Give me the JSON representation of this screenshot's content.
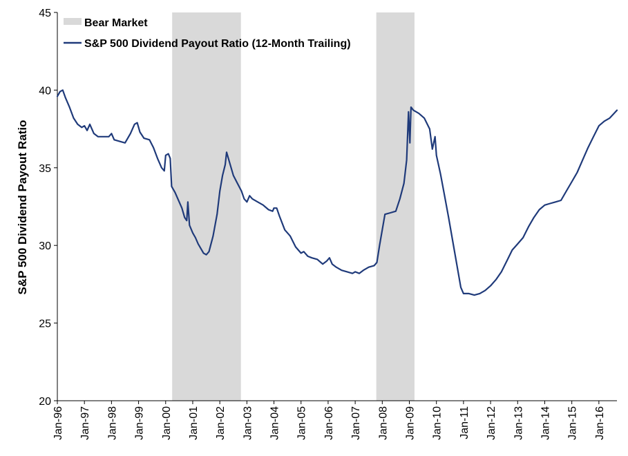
{
  "chart_data": {
    "type": "line",
    "title": "",
    "xlabel": "",
    "ylabel": "S&P 500 Dividend Payout Ratio",
    "ylim": [
      20,
      45
    ],
    "yticks": [
      "20",
      "25",
      "30",
      "35",
      "40",
      "45"
    ],
    "xlim": [
      1996.0,
      2016.667
    ],
    "xticks": [
      "Jan-96",
      "Jan-97",
      "Jan-98",
      "Jan-99",
      "Jan-00",
      "Jan-01",
      "Jan-02",
      "Jan-03",
      "Jan-04",
      "Jan-05",
      "Jan-06",
      "Jan-07",
      "Jan-08",
      "Jan-09",
      "Jan-10",
      "Jan-11",
      "Jan-12",
      "Jan-13",
      "Jan-14",
      "Jan-15",
      "Jan-16"
    ],
    "grid": false,
    "legend_position": "top-left",
    "shaded_regions": {
      "name": "Bear Market",
      "color": "#d9d9d9",
      "ranges": [
        [
          2000.24,
          2002.78
        ],
        [
          2007.78,
          2009.19
        ]
      ]
    },
    "series": [
      {
        "name": "S&P 500 Dividend Payout Ratio (12-Month Trailing)",
        "color": "#1f3a7a",
        "points": [
          [
            1996.0,
            39.6
          ],
          [
            1996.1,
            39.9
          ],
          [
            1996.2,
            40.0
          ],
          [
            1996.3,
            39.5
          ],
          [
            1996.45,
            38.9
          ],
          [
            1996.6,
            38.2
          ],
          [
            1996.75,
            37.8
          ],
          [
            1996.9,
            37.6
          ],
          [
            1997.0,
            37.7
          ],
          [
            1997.1,
            37.4
          ],
          [
            1997.2,
            37.8
          ],
          [
            1997.35,
            37.2
          ],
          [
            1997.5,
            37.0
          ],
          [
            1997.7,
            37.0
          ],
          [
            1997.9,
            37.0
          ],
          [
            1998.0,
            37.2
          ],
          [
            1998.1,
            36.8
          ],
          [
            1998.3,
            36.7
          ],
          [
            1998.5,
            36.6
          ],
          [
            1998.7,
            37.2
          ],
          [
            1998.85,
            37.8
          ],
          [
            1998.95,
            37.9
          ],
          [
            1999.05,
            37.3
          ],
          [
            1999.2,
            36.9
          ],
          [
            1999.4,
            36.8
          ],
          [
            1999.55,
            36.3
          ],
          [
            1999.7,
            35.6
          ],
          [
            1999.85,
            35.0
          ],
          [
            1999.95,
            34.8
          ],
          [
            2000.0,
            35.8
          ],
          [
            2000.1,
            35.9
          ],
          [
            2000.17,
            35.6
          ],
          [
            2000.22,
            33.8
          ],
          [
            2000.35,
            33.4
          ],
          [
            2000.5,
            32.8
          ],
          [
            2000.6,
            32.4
          ],
          [
            2000.7,
            31.8
          ],
          [
            2000.78,
            31.6
          ],
          [
            2000.82,
            32.8
          ],
          [
            2000.88,
            31.3
          ],
          [
            2001.0,
            30.8
          ],
          [
            2001.1,
            30.5
          ],
          [
            2001.2,
            30.1
          ],
          [
            2001.3,
            29.8
          ],
          [
            2001.4,
            29.5
          ],
          [
            2001.5,
            29.4
          ],
          [
            2001.6,
            29.6
          ],
          [
            2001.75,
            30.6
          ],
          [
            2001.9,
            32.0
          ],
          [
            2002.0,
            33.5
          ],
          [
            2002.1,
            34.5
          ],
          [
            2002.2,
            35.2
          ],
          [
            2002.25,
            36.0
          ],
          [
            2002.35,
            35.4
          ],
          [
            2002.5,
            34.5
          ],
          [
            2002.65,
            34.0
          ],
          [
            2002.8,
            33.5
          ],
          [
            2002.9,
            33.0
          ],
          [
            2003.0,
            32.8
          ],
          [
            2003.1,
            33.2
          ],
          [
            2003.2,
            33.0
          ],
          [
            2003.4,
            32.8
          ],
          [
            2003.6,
            32.6
          ],
          [
            2003.8,
            32.3
          ],
          [
            2003.95,
            32.2
          ],
          [
            2004.0,
            32.4
          ],
          [
            2004.1,
            32.4
          ],
          [
            2004.2,
            31.9
          ],
          [
            2004.4,
            31.0
          ],
          [
            2004.6,
            30.6
          ],
          [
            2004.8,
            29.9
          ],
          [
            2005.0,
            29.5
          ],
          [
            2005.1,
            29.6
          ],
          [
            2005.25,
            29.3
          ],
          [
            2005.4,
            29.2
          ],
          [
            2005.6,
            29.1
          ],
          [
            2005.8,
            28.8
          ],
          [
            2005.95,
            29.0
          ],
          [
            2006.05,
            29.2
          ],
          [
            2006.15,
            28.8
          ],
          [
            2006.3,
            28.6
          ],
          [
            2006.5,
            28.4
          ],
          [
            2006.7,
            28.3
          ],
          [
            2006.9,
            28.2
          ],
          [
            2007.0,
            28.3
          ],
          [
            2007.15,
            28.2
          ],
          [
            2007.3,
            28.4
          ],
          [
            2007.5,
            28.6
          ],
          [
            2007.7,
            28.7
          ],
          [
            2007.8,
            28.9
          ],
          [
            2007.9,
            30.0
          ],
          [
            2008.0,
            31.0
          ],
          [
            2008.1,
            32.0
          ],
          [
            2008.3,
            32.1
          ],
          [
            2008.5,
            32.2
          ],
          [
            2008.65,
            33.0
          ],
          [
            2008.8,
            34.0
          ],
          [
            2008.9,
            35.5
          ],
          [
            2008.97,
            38.6
          ],
          [
            2009.02,
            36.6
          ],
          [
            2009.06,
            38.9
          ],
          [
            2009.15,
            38.7
          ],
          [
            2009.35,
            38.5
          ],
          [
            2009.55,
            38.2
          ],
          [
            2009.75,
            37.5
          ],
          [
            2009.85,
            36.2
          ],
          [
            2009.95,
            37.0
          ],
          [
            2010.0,
            35.8
          ],
          [
            2010.15,
            34.6
          ],
          [
            2010.3,
            33.2
          ],
          [
            2010.45,
            31.8
          ],
          [
            2010.6,
            30.3
          ],
          [
            2010.75,
            28.8
          ],
          [
            2010.9,
            27.3
          ],
          [
            2011.0,
            26.9
          ],
          [
            2011.2,
            26.9
          ],
          [
            2011.4,
            26.8
          ],
          [
            2011.6,
            26.9
          ],
          [
            2011.8,
            27.1
          ],
          [
            2012.0,
            27.4
          ],
          [
            2012.2,
            27.8
          ],
          [
            2012.4,
            28.3
          ],
          [
            2012.6,
            29.0
          ],
          [
            2012.8,
            29.7
          ],
          [
            2013.0,
            30.1
          ],
          [
            2013.2,
            30.5
          ],
          [
            2013.4,
            31.2
          ],
          [
            2013.6,
            31.8
          ],
          [
            2013.8,
            32.3
          ],
          [
            2014.0,
            32.6
          ],
          [
            2014.2,
            32.7
          ],
          [
            2014.4,
            32.8
          ],
          [
            2014.6,
            32.9
          ],
          [
            2014.8,
            33.5
          ],
          [
            2015.0,
            34.1
          ],
          [
            2015.2,
            34.7
          ],
          [
            2015.4,
            35.5
          ],
          [
            2015.6,
            36.3
          ],
          [
            2015.8,
            37.0
          ],
          [
            2016.0,
            37.7
          ],
          [
            2016.2,
            38.0
          ],
          [
            2016.4,
            38.2
          ],
          [
            2016.667,
            38.7
          ]
        ]
      }
    ]
  }
}
